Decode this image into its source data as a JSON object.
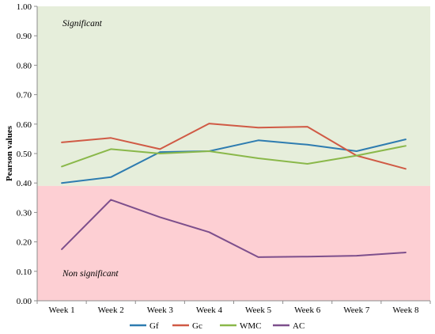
{
  "chart_data": {
    "type": "line",
    "ylabel": "Pearson values",
    "xlabel": "",
    "ylim": [
      0.0,
      1.0
    ],
    "yticks": [
      "0.00",
      "0.10",
      "0.20",
      "0.30",
      "0.40",
      "0.50",
      "0.60",
      "0.70",
      "0.80",
      "0.90",
      "1.00"
    ],
    "categories": [
      "Week 1",
      "Week 2",
      "Week 3",
      "Week 4",
      "Week 5",
      "Week 6",
      "Week 7",
      "Week 8"
    ],
    "threshold": 0.39,
    "regions": {
      "significant": {
        "label": "Significant",
        "color": "#e6eedb"
      },
      "non_significant": {
        "label": "Non significant",
        "color": "#fdcfd3"
      }
    },
    "legend_position": "bottom",
    "series": [
      {
        "name": "Gf",
        "color": "#2e7cb0",
        "values": [
          0.4,
          0.42,
          0.505,
          0.508,
          0.545,
          0.53,
          0.508,
          0.548
        ]
      },
      {
        "name": "Gc",
        "color": "#d05a45",
        "values": [
          0.538,
          0.553,
          0.515,
          0.602,
          0.588,
          0.591,
          0.493,
          0.448
        ]
      },
      {
        "name": "WMC",
        "color": "#8ab84a",
        "values": [
          0.456,
          0.515,
          0.5,
          0.508,
          0.484,
          0.465,
          0.493,
          0.526
        ]
      },
      {
        "name": "AC",
        "color": "#7d4f8c",
        "values": [
          0.175,
          0.343,
          0.284,
          0.233,
          0.148,
          0.15,
          0.153,
          0.164
        ]
      }
    ]
  }
}
